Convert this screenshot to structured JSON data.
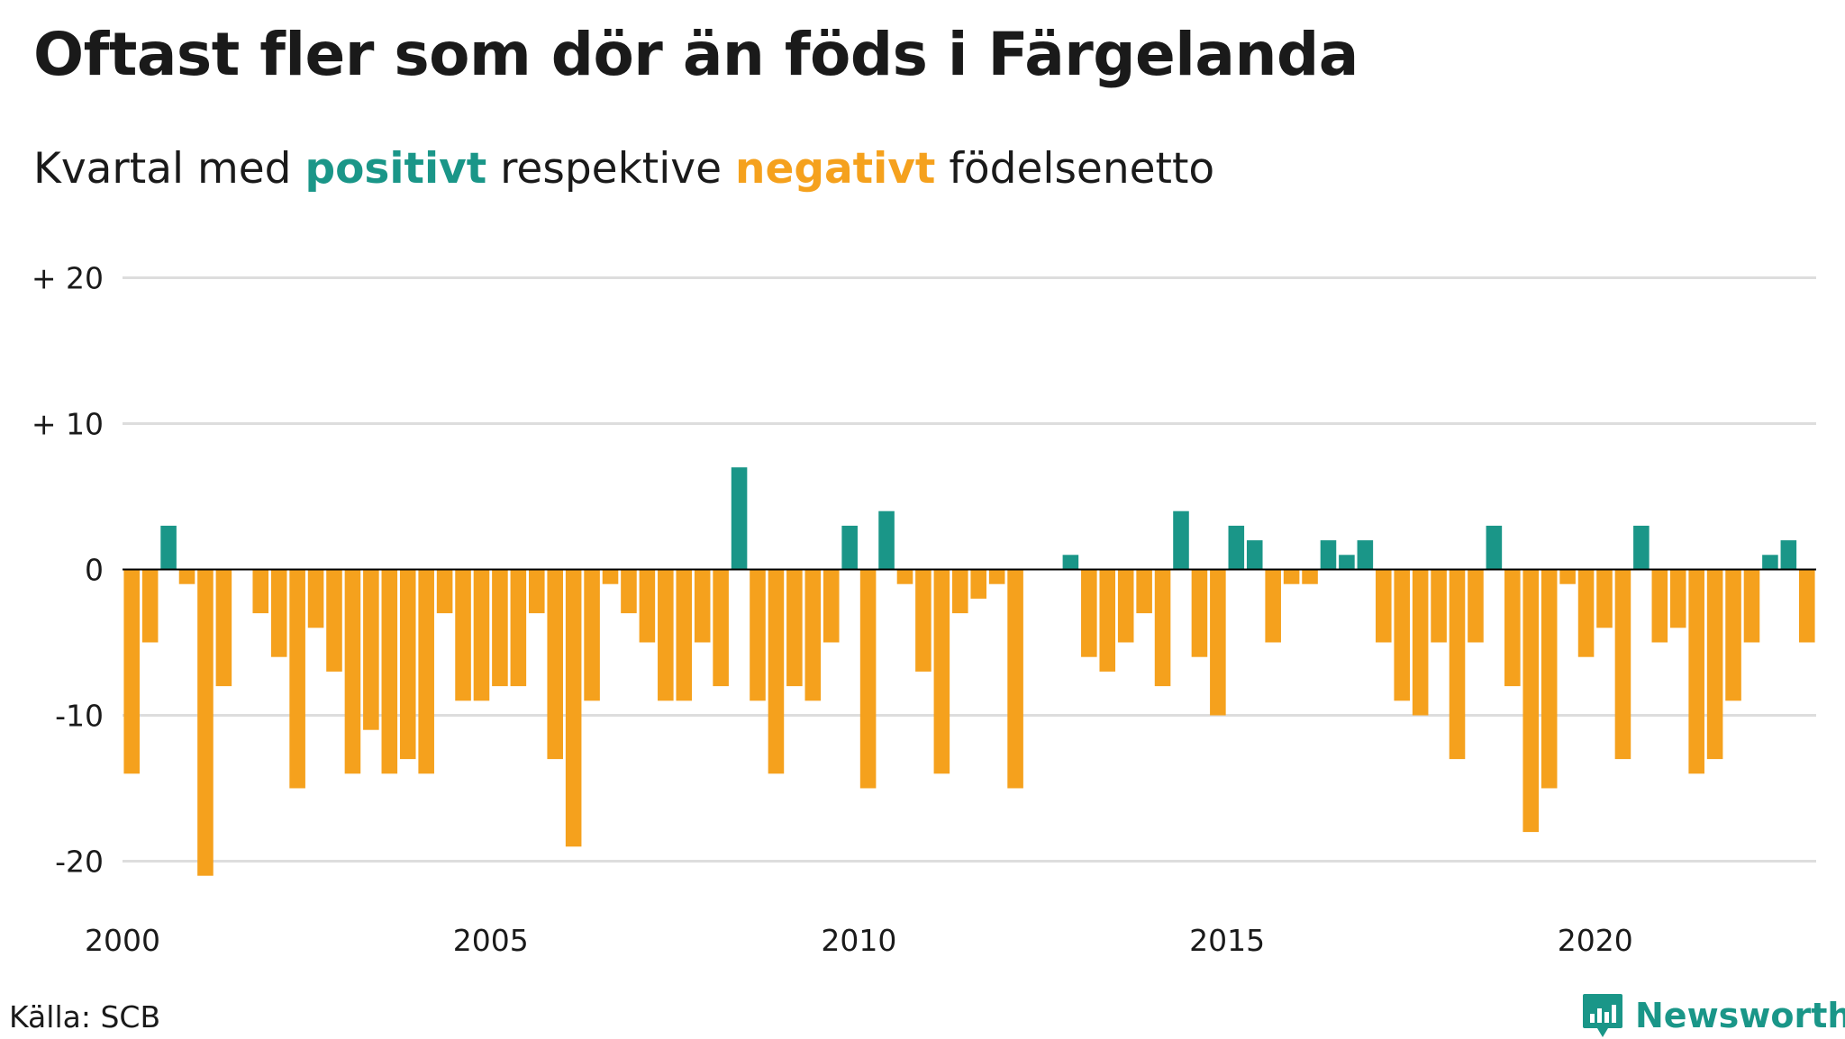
{
  "header": {
    "title": "Oftast fler som dör än föds i Färgelanda",
    "subtitle_pre": "Kvartal med",
    "subtitle_pos": "positivt",
    "subtitle_mid": "respektive",
    "subtitle_neg": "negativt",
    "subtitle_post": "födelsenetto"
  },
  "footer": {
    "source": "Källa: SCB",
    "brand": "Newsworthy",
    "brand_icon": "newsworthy-logo-icon"
  },
  "colors": {
    "positive": "#1a9688",
    "negative": "#f5a11d",
    "grid": "#dddddd",
    "text": "#1a1a1a"
  },
  "chart_data": {
    "type": "bar",
    "x_unit": "year-quarter",
    "x_start": "2000 Q1",
    "ylim": [
      -22,
      20
    ],
    "xlim": [
      2000,
      2023
    ],
    "yticks": [
      20,
      10,
      0,
      -10,
      -20
    ],
    "ytick_labels": [
      "+ 20",
      "+ 10",
      "0",
      "-10",
      "-20"
    ],
    "xticks": [
      2000,
      2005,
      2010,
      2015,
      2020
    ],
    "xtick_labels": [
      "2000",
      "2005",
      "2010",
      "2015",
      "2020"
    ],
    "grid": true,
    "values": [
      -14,
      -5,
      3,
      -1,
      -21,
      -8,
      0,
      -3,
      -6,
      -15,
      -4,
      -7,
      -14,
      -11,
      -14,
      -13,
      -14,
      -3,
      -9,
      -9,
      -8,
      -8,
      -3,
      -13,
      -19,
      -9,
      -1,
      -3,
      -5,
      -9,
      -9,
      -5,
      -8,
      7,
      -9,
      -14,
      -8,
      -9,
      -5,
      3,
      -15,
      4,
      -1,
      -7,
      -14,
      -3,
      -2,
      -1,
      -15,
      0,
      0,
      1,
      -6,
      -7,
      -5,
      -3,
      -8,
      4,
      -6,
      -10,
      3,
      2,
      -5,
      -1,
      -1,
      2,
      1,
      2,
      -5,
      -9,
      -10,
      -5,
      -13,
      -5,
      3,
      -8,
      -18,
      -15,
      -1,
      -6,
      -4,
      -13,
      3,
      -5,
      -4,
      -14,
      -13,
      -9,
      -5,
      1,
      2,
      -5
    ]
  }
}
